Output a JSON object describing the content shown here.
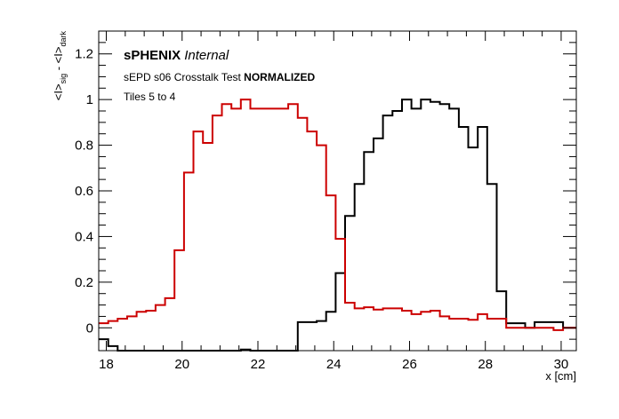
{
  "chart_data": {
    "type": "line",
    "step": true,
    "xlabel": "x [cm]",
    "ylabel": {
      "main": "<I>",
      "sub1": "sig",
      "mid": " - <I>",
      "sub2": "dark"
    },
    "xlim": [
      17.8,
      30.4
    ],
    "ylim": [
      -0.1,
      1.3
    ],
    "xticks": [
      18,
      20,
      22,
      24,
      26,
      28,
      30
    ],
    "yticks": [
      0,
      0.2,
      0.4,
      0.6,
      0.8,
      1,
      1.2
    ],
    "ytick_labels": [
      "0",
      "0.2",
      "0.4",
      "0.6",
      "0.8",
      "1",
      "1.2"
    ],
    "annotations": {
      "experiment": "sPHENIX",
      "status": "Internal",
      "test_prefix": "sEPD s06 Crosstalk Test ",
      "test_bold": "NORMALIZED",
      "tiles": "Tiles 5 to 4"
    },
    "series": [
      {
        "color": "#000000",
        "edges": [
          17.8,
          18.05,
          18.3,
          18.55,
          18.8,
          19.05,
          19.3,
          19.55,
          19.8,
          20.05,
          20.3,
          20.55,
          20.8,
          21.05,
          21.3,
          21.55,
          21.8,
          22.05,
          22.3,
          22.55,
          22.8,
          23.05,
          23.3,
          23.55,
          23.8,
          24.05,
          24.3,
          24.55,
          24.8,
          25.05,
          25.3,
          25.55,
          25.8,
          26.05,
          26.3,
          26.55,
          26.8,
          27.05,
          27.3,
          27.55,
          27.8,
          28.05,
          28.3,
          28.55,
          28.8,
          29.05,
          29.3,
          29.55,
          29.8,
          30.05,
          30.4
        ],
        "values": [
          -0.05,
          -0.08,
          -0.1,
          -0.1,
          -0.1,
          -0.1,
          -0.1,
          -0.1,
          -0.1,
          -0.1,
          -0.1,
          -0.1,
          -0.1,
          -0.1,
          -0.1,
          -0.095,
          -0.1,
          -0.1,
          -0.1,
          -0.1,
          -0.1,
          0.025,
          0.025,
          0.03,
          0.07,
          0.24,
          0.49,
          0.63,
          0.77,
          0.83,
          0.93,
          0.95,
          1.0,
          0.96,
          1.0,
          0.99,
          0.98,
          0.96,
          0.88,
          0.79,
          0.88,
          0.63,
          0.16,
          0.02,
          0.02,
          0.0,
          0.025,
          0.025,
          0.025,
          0.0
        ]
      },
      {
        "color": "#cc0000",
        "edges": [
          17.8,
          18.05,
          18.3,
          18.55,
          18.8,
          19.05,
          19.3,
          19.55,
          19.8,
          20.05,
          20.3,
          20.55,
          20.8,
          21.05,
          21.3,
          21.55,
          21.8,
          22.05,
          22.3,
          22.55,
          22.8,
          23.05,
          23.3,
          23.55,
          23.8,
          24.05,
          24.3,
          24.55,
          24.8,
          25.05,
          25.3,
          25.55,
          25.8,
          26.05,
          26.3,
          26.55,
          26.8,
          27.05,
          27.3,
          27.55,
          27.8,
          28.05,
          28.3,
          28.55,
          28.8,
          29.05,
          29.3,
          29.55,
          29.8,
          30.05,
          30.4
        ],
        "values": [
          0.02,
          0.03,
          0.04,
          0.05,
          0.07,
          0.075,
          0.1,
          0.13,
          0.34,
          0.68,
          0.86,
          0.81,
          0.93,
          0.98,
          0.96,
          1.0,
          0.96,
          0.96,
          0.96,
          0.96,
          0.98,
          0.92,
          0.86,
          0.8,
          0.58,
          0.39,
          0.11,
          0.085,
          0.09,
          0.08,
          0.085,
          0.085,
          0.075,
          0.06,
          0.07,
          0.075,
          0.05,
          0.04,
          0.04,
          0.035,
          0.06,
          0.04,
          0.04,
          0.0,
          0.0,
          0.0,
          0.0,
          0.0,
          -0.01,
          0.0
        ]
      }
    ]
  }
}
